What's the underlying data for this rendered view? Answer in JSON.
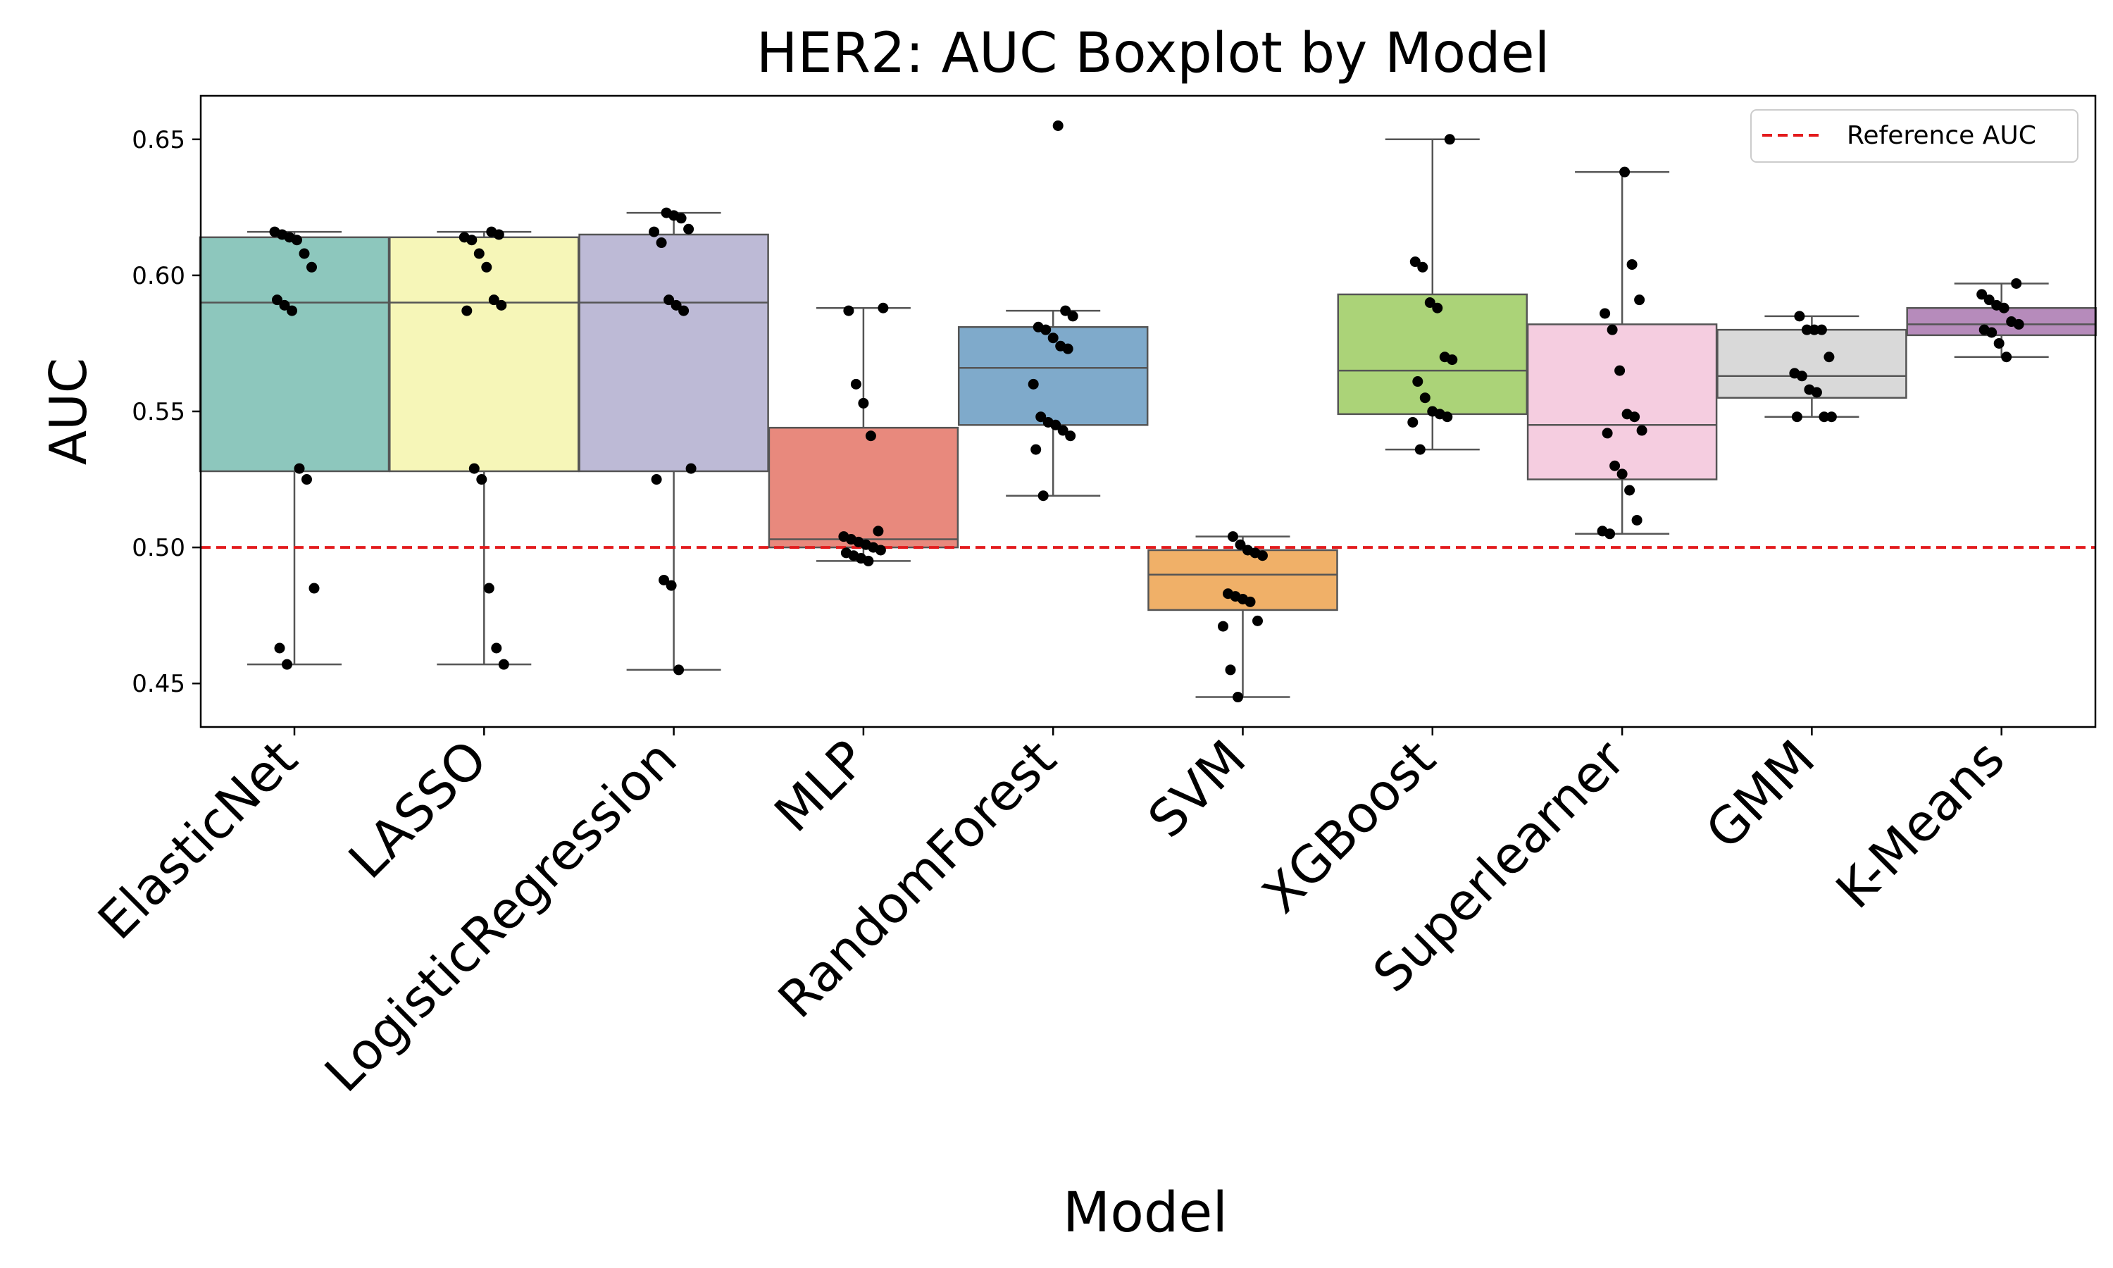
{
  "chart_data": {
    "type": "box",
    "title": "HER2: AUC Boxplot by Model",
    "xlabel": "Model",
    "ylabel": "AUC",
    "ylim": [
      0.434,
      0.666
    ],
    "yticks": [
      0.45,
      0.5,
      0.55,
      0.6,
      0.65
    ],
    "ytick_labels": [
      "0.45",
      "0.50",
      "0.55",
      "0.60",
      "0.65"
    ],
    "grid": false,
    "reference_line": {
      "label": "Reference AUC",
      "value": 0.5,
      "color": "#e31a1c",
      "style": "dashed"
    },
    "legend": {
      "position": "top-right"
    },
    "categories": [
      "ElasticNet",
      "LASSO",
      "LogisticRegression",
      "MLP",
      "RandomForest",
      "SVM",
      "XGBoost",
      "Superlearner",
      "GMM",
      "K-Means"
    ],
    "boxes": [
      {
        "name": "ElasticNet",
        "color": "#8dc7bd",
        "whisker_low": 0.457,
        "q1": 0.528,
        "median": 0.59,
        "q3": 0.614,
        "whisker_high": 0.616,
        "points": [
          0.616,
          0.615,
          0.614,
          0.613,
          0.608,
          0.603,
          0.591,
          0.589,
          0.587,
          0.529,
          0.525,
          0.485,
          0.463,
          0.457
        ]
      },
      {
        "name": "LASSO",
        "color": "#f6f6b8",
        "whisker_low": 0.457,
        "q1": 0.528,
        "median": 0.59,
        "q3": 0.614,
        "whisker_high": 0.616,
        "points": [
          0.616,
          0.615,
          0.614,
          0.613,
          0.608,
          0.603,
          0.591,
          0.589,
          0.587,
          0.529,
          0.525,
          0.485,
          0.463,
          0.457
        ]
      },
      {
        "name": "LogisticRegression",
        "color": "#bdbad6",
        "whisker_low": 0.455,
        "q1": 0.528,
        "median": 0.59,
        "q3": 0.615,
        "whisker_high": 0.623,
        "points": [
          0.623,
          0.622,
          0.621,
          0.617,
          0.616,
          0.612,
          0.591,
          0.589,
          0.587,
          0.529,
          0.525,
          0.488,
          0.486,
          0.455
        ]
      },
      {
        "name": "MLP",
        "color": "#e8897d",
        "whisker_low": 0.495,
        "q1": 0.5,
        "median": 0.503,
        "q3": 0.544,
        "whisker_high": 0.588,
        "points": [
          0.588,
          0.587,
          0.56,
          0.553,
          0.541,
          0.506,
          0.504,
          0.503,
          0.502,
          0.501,
          0.5,
          0.499,
          0.498,
          0.497,
          0.496,
          0.495
        ]
      },
      {
        "name": "RandomForest",
        "color": "#7faacb",
        "whisker_low": 0.519,
        "q1": 0.545,
        "median": 0.566,
        "q3": 0.581,
        "whisker_high": 0.587,
        "points": [
          0.655,
          0.587,
          0.585,
          0.581,
          0.58,
          0.577,
          0.574,
          0.573,
          0.56,
          0.548,
          0.546,
          0.545,
          0.543,
          0.541,
          0.536,
          0.519
        ]
      },
      {
        "name": "SVM",
        "color": "#f0b068",
        "whisker_low": 0.445,
        "q1": 0.477,
        "median": 0.49,
        "q3": 0.499,
        "whisker_high": 0.504,
        "points": [
          0.504,
          0.501,
          0.499,
          0.498,
          0.497,
          0.483,
          0.482,
          0.481,
          0.48,
          0.473,
          0.471,
          0.455,
          0.445
        ]
      },
      {
        "name": "XGBoost",
        "color": "#abd378",
        "whisker_low": 0.536,
        "q1": 0.549,
        "median": 0.565,
        "q3": 0.593,
        "whisker_high": 0.65,
        "points": [
          0.65,
          0.605,
          0.603,
          0.59,
          0.588,
          0.57,
          0.569,
          0.561,
          0.555,
          0.55,
          0.549,
          0.548,
          0.546,
          0.536
        ]
      },
      {
        "name": "Superlearner",
        "color": "#f5cde0",
        "whisker_low": 0.505,
        "q1": 0.525,
        "median": 0.545,
        "q3": 0.582,
        "whisker_high": 0.638,
        "points": [
          0.638,
          0.604,
          0.591,
          0.586,
          0.58,
          0.565,
          0.549,
          0.548,
          0.543,
          0.542,
          0.53,
          0.527,
          0.521,
          0.51,
          0.506,
          0.505
        ]
      },
      {
        "name": "GMM",
        "color": "#d9d9d9",
        "whisker_low": 0.548,
        "q1": 0.555,
        "median": 0.563,
        "q3": 0.58,
        "whisker_high": 0.585,
        "points": [
          0.585,
          0.58,
          0.58,
          0.58,
          0.57,
          0.564,
          0.563,
          0.558,
          0.557,
          0.548,
          0.548,
          0.548
        ]
      },
      {
        "name": "K-Means",
        "color": "#b68bbb",
        "whisker_low": 0.57,
        "q1": 0.578,
        "median": 0.582,
        "q3": 0.588,
        "whisker_high": 0.597,
        "points": [
          0.597,
          0.593,
          0.591,
          0.589,
          0.588,
          0.583,
          0.582,
          0.58,
          0.579,
          0.575,
          0.57
        ]
      }
    ]
  }
}
